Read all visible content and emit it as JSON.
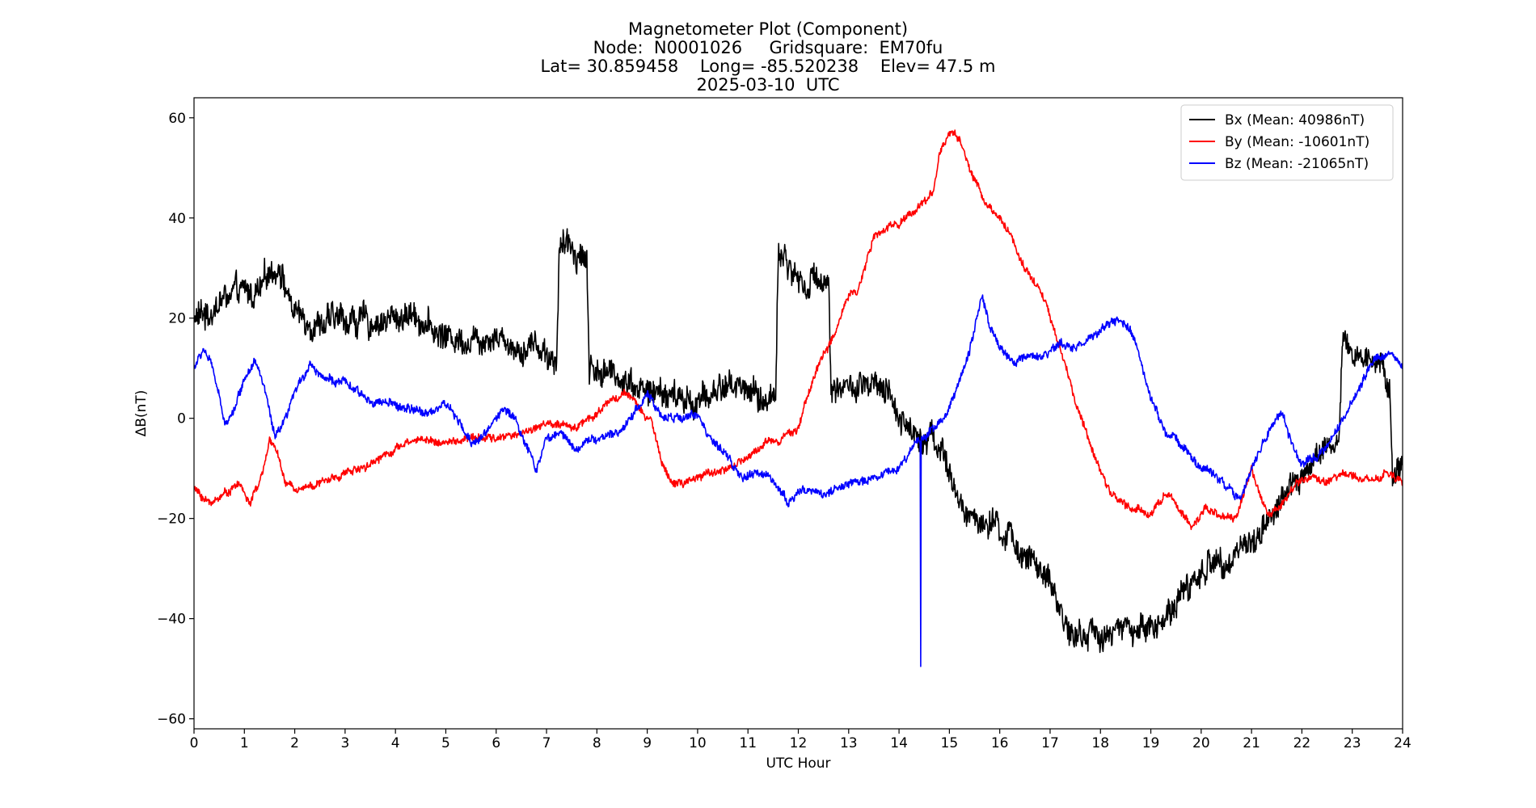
{
  "title": {
    "line1": "Magnetometer Plot (Component)",
    "line2": "Node:  N0001026     Gridsquare:  EM70fu",
    "line3": "Lat= 30.859458    Long= -85.520238    Elev= 47.5 m",
    "line4": "2025-03-10  UTC"
  },
  "chart_data": {
    "type": "line",
    "xlabel": "UTC Hour",
    "ylabel": "ΔB(nT)",
    "xlim": [
      0,
      24
    ],
    "ylim": [
      -62,
      64
    ],
    "xticks": [
      0,
      1,
      2,
      3,
      4,
      5,
      6,
      7,
      8,
      9,
      10,
      11,
      12,
      13,
      14,
      15,
      16,
      17,
      18,
      19,
      20,
      21,
      22,
      23,
      24
    ],
    "yticks": [
      -60,
      -40,
      -20,
      0,
      20,
      40,
      60
    ],
    "ytick_labels": [
      "−60",
      "−40",
      "−20",
      "0",
      "20",
      "40",
      "60"
    ],
    "grid": false,
    "legend_position": "top-right",
    "series": [
      {
        "name": "Bx (Mean: 40986nT)",
        "color": "#000000",
        "noise": 3.2,
        "points": [
          [
            0,
            20
          ],
          [
            0.3,
            21
          ],
          [
            0.6,
            24
          ],
          [
            1.0,
            25
          ],
          [
            1.3,
            25
          ],
          [
            1.5,
            29
          ],
          [
            1.7,
            31
          ],
          [
            1.9,
            23
          ],
          [
            2.1,
            20
          ],
          [
            2.5,
            19
          ],
          [
            3.0,
            20
          ],
          [
            3.5,
            19
          ],
          [
            4.0,
            20
          ],
          [
            4.4,
            21
          ],
          [
            4.8,
            17
          ],
          [
            5.2,
            16
          ],
          [
            5.6,
            16
          ],
          [
            6.0,
            17
          ],
          [
            6.4,
            14
          ],
          [
            6.8,
            15
          ],
          [
            7.2,
            11
          ],
          [
            7.25,
            34
          ],
          [
            7.5,
            34
          ],
          [
            7.8,
            32
          ],
          [
            7.85,
            10
          ],
          [
            8.2,
            9
          ],
          [
            8.6,
            8
          ],
          [
            9.0,
            5
          ],
          [
            9.3,
            5
          ],
          [
            9.6,
            4
          ],
          [
            10.0,
            3
          ],
          [
            10.3,
            5
          ],
          [
            10.6,
            7
          ],
          [
            11.0,
            6
          ],
          [
            11.3,
            3
          ],
          [
            11.55,
            5
          ],
          [
            11.6,
            34
          ],
          [
            11.9,
            29
          ],
          [
            12.2,
            26
          ],
          [
            12.4,
            29
          ],
          [
            12.6,
            27
          ],
          [
            12.65,
            7
          ],
          [
            13.0,
            6
          ],
          [
            13.5,
            6
          ],
          [
            13.8,
            4
          ],
          [
            14.0,
            1
          ],
          [
            14.3,
            -3
          ],
          [
            14.6,
            -3
          ],
          [
            14.9,
            -7
          ],
          [
            15.0,
            -12
          ],
          [
            15.3,
            -19
          ],
          [
            15.7,
            -21
          ],
          [
            16.2,
            -24
          ],
          [
            16.6,
            -28
          ],
          [
            17.0,
            -34
          ],
          [
            17.3,
            -40
          ],
          [
            17.5,
            -44
          ],
          [
            17.8,
            -43
          ],
          [
            18.2,
            -43
          ],
          [
            18.6,
            -42
          ],
          [
            19.0,
            -42
          ],
          [
            19.4,
            -38
          ],
          [
            19.8,
            -33
          ],
          [
            20.2,
            -29
          ],
          [
            20.6,
            -27
          ],
          [
            21.0,
            -25
          ],
          [
            21.4,
            -19
          ],
          [
            21.8,
            -14
          ],
          [
            22.2,
            -9
          ],
          [
            22.5,
            -6
          ],
          [
            22.75,
            -4
          ],
          [
            22.8,
            14
          ],
          [
            23.2,
            12
          ],
          [
            23.6,
            11
          ],
          [
            23.75,
            6
          ],
          [
            23.8,
            -13
          ],
          [
            24.0,
            -8
          ]
        ]
      },
      {
        "name": "By (Mean: -10601nT)",
        "color": "#ff0000",
        "noise": 0.9,
        "points": [
          [
            0,
            -14
          ],
          [
            0.3,
            -17
          ],
          [
            0.6,
            -15
          ],
          [
            0.9,
            -13
          ],
          [
            1.1,
            -17
          ],
          [
            1.3,
            -13
          ],
          [
            1.5,
            -5
          ],
          [
            1.65,
            -6
          ],
          [
            1.8,
            -13
          ],
          [
            2.0,
            -14
          ],
          [
            2.5,
            -13
          ],
          [
            3.0,
            -11
          ],
          [
            3.5,
            -9
          ],
          [
            4.0,
            -6
          ],
          [
            4.5,
            -4
          ],
          [
            5.0,
            -5
          ],
          [
            5.5,
            -4
          ],
          [
            6.0,
            -4
          ],
          [
            6.5,
            -3
          ],
          [
            7.0,
            -1
          ],
          [
            7.5,
            -2
          ],
          [
            8.0,
            1
          ],
          [
            8.3,
            4
          ],
          [
            8.6,
            5
          ],
          [
            8.9,
            1
          ],
          [
            9.1,
            -1
          ],
          [
            9.3,
            -9
          ],
          [
            9.5,
            -13
          ],
          [
            9.8,
            -13
          ],
          [
            10.2,
            -11
          ],
          [
            10.6,
            -10
          ],
          [
            11.0,
            -8
          ],
          [
            11.3,
            -5
          ],
          [
            11.6,
            -4
          ],
          [
            12.0,
            -2
          ],
          [
            12.2,
            5
          ],
          [
            12.4,
            11
          ],
          [
            12.6,
            14
          ],
          [
            12.8,
            19
          ],
          [
            13.0,
            25
          ],
          [
            13.2,
            26
          ],
          [
            13.5,
            36
          ],
          [
            13.8,
            38
          ],
          [
            14.1,
            40
          ],
          [
            14.5,
            43
          ],
          [
            14.7,
            46
          ],
          [
            14.8,
            53
          ],
          [
            15.0,
            57
          ],
          [
            15.2,
            56
          ],
          [
            15.4,
            50
          ],
          [
            15.7,
            43
          ],
          [
            16.0,
            40
          ],
          [
            16.2,
            37
          ],
          [
            16.5,
            30
          ],
          [
            16.8,
            26
          ],
          [
            17.0,
            20
          ],
          [
            17.2,
            14
          ],
          [
            17.4,
            7
          ],
          [
            17.6,
            0
          ],
          [
            17.9,
            -8
          ],
          [
            18.2,
            -15
          ],
          [
            18.6,
            -18
          ],
          [
            19.0,
            -19
          ],
          [
            19.3,
            -15
          ],
          [
            19.6,
            -18
          ],
          [
            19.8,
            -22
          ],
          [
            20.1,
            -18
          ],
          [
            20.4,
            -20
          ],
          [
            20.7,
            -20
          ],
          [
            21.0,
            -10
          ],
          [
            21.3,
            -19
          ],
          [
            21.6,
            -17
          ],
          [
            21.9,
            -13
          ],
          [
            22.2,
            -12
          ],
          [
            22.5,
            -13
          ],
          [
            22.8,
            -11
          ],
          [
            23.1,
            -12
          ],
          [
            23.4,
            -12
          ],
          [
            23.7,
            -11
          ],
          [
            24.0,
            -13
          ]
        ]
      },
      {
        "name": "Bz (Mean: -21065nT)",
        "color": "#0000ff",
        "noise": 1.0,
        "points": [
          [
            0,
            10
          ],
          [
            0.2,
            14
          ],
          [
            0.4,
            9
          ],
          [
            0.6,
            -1
          ],
          [
            0.8,
            2
          ],
          [
            1.0,
            8
          ],
          [
            1.2,
            12
          ],
          [
            1.4,
            6
          ],
          [
            1.6,
            -4
          ],
          [
            1.8,
            -1
          ],
          [
            2.0,
            5
          ],
          [
            2.3,
            11
          ],
          [
            2.6,
            8
          ],
          [
            3.0,
            7
          ],
          [
            3.4,
            4
          ],
          [
            3.8,
            3
          ],
          [
            4.2,
            2
          ],
          [
            4.6,
            1
          ],
          [
            5.0,
            3
          ],
          [
            5.2,
            0
          ],
          [
            5.5,
            -5
          ],
          [
            5.8,
            -3
          ],
          [
            6.1,
            2
          ],
          [
            6.4,
            0
          ],
          [
            6.6,
            -6
          ],
          [
            6.8,
            -10
          ],
          [
            7.0,
            -4
          ],
          [
            7.3,
            -3
          ],
          [
            7.6,
            -6
          ],
          [
            7.9,
            -4
          ],
          [
            8.2,
            -4
          ],
          [
            8.5,
            -2
          ],
          [
            8.8,
            2
          ],
          [
            9.0,
            5
          ],
          [
            9.3,
            0
          ],
          [
            9.6,
            0
          ],
          [
            10.0,
            1
          ],
          [
            10.3,
            -5
          ],
          [
            10.6,
            -8
          ],
          [
            10.9,
            -12
          ],
          [
            11.2,
            -11
          ],
          [
            11.5,
            -12
          ],
          [
            11.8,
            -17
          ],
          [
            12.1,
            -14
          ],
          [
            12.5,
            -15
          ],
          [
            12.8,
            -14
          ],
          [
            13.1,
            -13
          ],
          [
            13.4,
            -12
          ],
          [
            13.7,
            -11
          ],
          [
            14.0,
            -10
          ],
          [
            14.3,
            -5
          ],
          [
            14.42,
            -4
          ],
          [
            14.43,
            -49
          ],
          [
            14.44,
            -4
          ],
          [
            14.7,
            -2
          ],
          [
            15.0,
            2
          ],
          [
            15.3,
            10
          ],
          [
            15.5,
            18
          ],
          [
            15.65,
            25
          ],
          [
            15.8,
            18
          ],
          [
            16.0,
            14
          ],
          [
            16.3,
            11
          ],
          [
            16.6,
            12
          ],
          [
            16.9,
            12
          ],
          [
            17.2,
            15
          ],
          [
            17.5,
            14
          ],
          [
            17.8,
            16
          ],
          [
            18.1,
            18
          ],
          [
            18.4,
            20
          ],
          [
            18.7,
            15
          ],
          [
            19.0,
            4
          ],
          [
            19.3,
            -3
          ],
          [
            19.6,
            -5
          ],
          [
            19.9,
            -9
          ],
          [
            20.2,
            -11
          ],
          [
            20.5,
            -13
          ],
          [
            20.8,
            -16
          ],
          [
            21.0,
            -10
          ],
          [
            21.3,
            -3
          ],
          [
            21.6,
            1
          ],
          [
            21.8,
            -5
          ],
          [
            22.0,
            -9
          ],
          [
            22.3,
            -8
          ],
          [
            22.6,
            -4
          ],
          [
            22.9,
            1
          ],
          [
            23.2,
            7
          ],
          [
            23.5,
            13
          ],
          [
            23.8,
            13
          ],
          [
            24.0,
            10
          ]
        ]
      }
    ],
    "annotations": []
  }
}
